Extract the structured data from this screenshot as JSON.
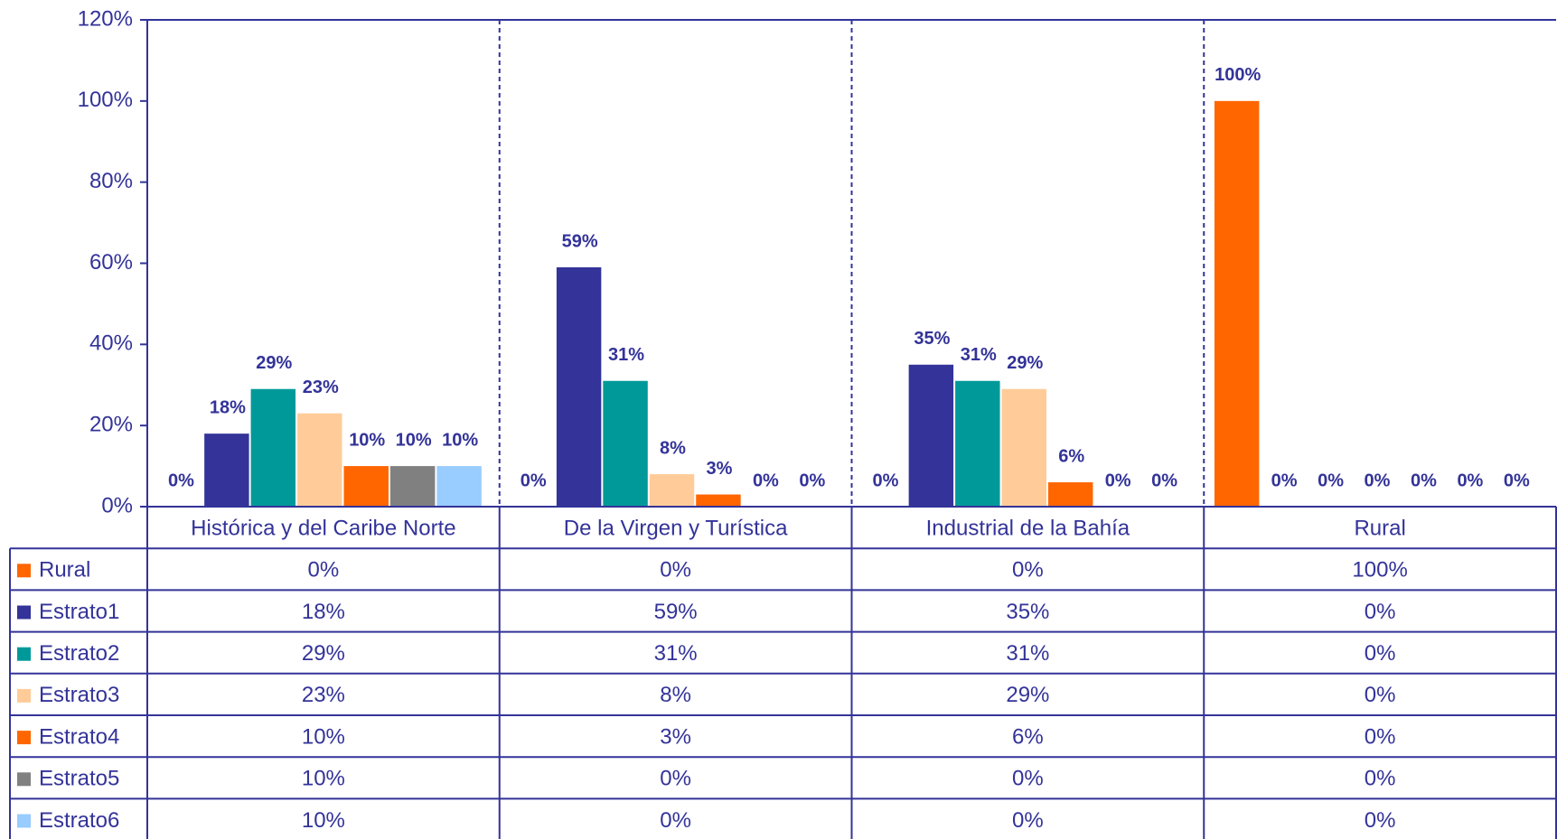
{
  "chart_data": {
    "type": "bar",
    "categories": [
      "Histórica y del Caribe Norte",
      "De la Virgen y Turística",
      "Industrial de la Bahía",
      "Rural"
    ],
    "series": [
      {
        "name": "Rural",
        "color": "#ff6600",
        "values": [
          0,
          0,
          0,
          100
        ],
        "value_labels": [
          "0%",
          "0%",
          "0%",
          "100%"
        ]
      },
      {
        "name": "Estrato1",
        "color": "#333399",
        "values": [
          18,
          59,
          35,
          0
        ],
        "value_labels": [
          "18%",
          "59%",
          "35%",
          "0%"
        ]
      },
      {
        "name": "Estrato2",
        "color": "#009999",
        "values": [
          29,
          31,
          31,
          0
        ],
        "value_labels": [
          "29%",
          "31%",
          "31%",
          "0%"
        ]
      },
      {
        "name": "Estrato3",
        "color": "#ffcc99",
        "values": [
          23,
          8,
          29,
          0
        ],
        "value_labels": [
          "23%",
          "8%",
          "29%",
          "0%"
        ]
      },
      {
        "name": "Estrato4",
        "color": "#ff6600",
        "values": [
          10,
          3,
          6,
          0
        ],
        "value_labels": [
          "10%",
          "3%",
          "6%",
          "0%"
        ]
      },
      {
        "name": "Estrato5",
        "color": "#808080",
        "values": [
          10,
          0,
          0,
          0
        ],
        "value_labels": [
          "10%",
          "0%",
          "0%",
          "0%"
        ]
      },
      {
        "name": "Estrato6",
        "color": "#99ccff",
        "values": [
          10,
          0,
          0,
          0
        ],
        "value_labels": [
          "10%",
          "0%",
          "0%",
          "0%"
        ]
      }
    ],
    "ylim": [
      0,
      120
    ],
    "yticks": [
      {
        "value": 0,
        "label": "0%"
      },
      {
        "value": 20,
        "label": "20%"
      },
      {
        "value": 40,
        "label": "40%"
      },
      {
        "value": 60,
        "label": "60%"
      },
      {
        "value": 80,
        "label": "80%"
      },
      {
        "value": 100,
        "label": "100%"
      },
      {
        "value": 120,
        "label": "120%"
      }
    ],
    "grid": false,
    "legend": "table"
  }
}
